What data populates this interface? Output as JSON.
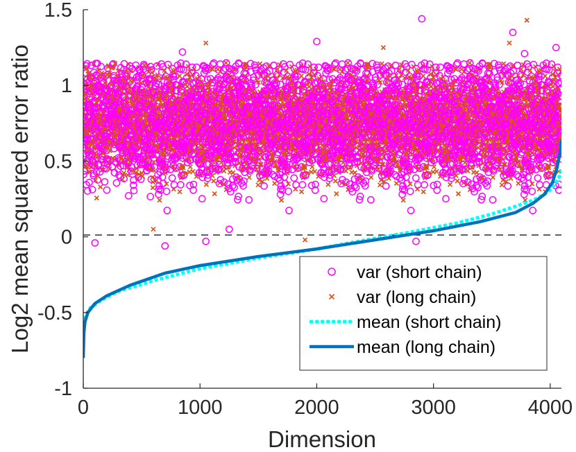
{
  "chart_data": {
    "type": "scatter",
    "title": "",
    "xlabel": "Dimension",
    "ylabel": "Log2 mean squared error ratio",
    "xlim": [
      0,
      4096
    ],
    "ylim": [
      -1,
      1.5
    ],
    "xticks": [
      0,
      1000,
      2000,
      3000,
      4000
    ],
    "xtick_labels": [
      "0",
      "1000",
      "2000",
      "3000",
      "4000"
    ],
    "yticks": [
      -1,
      -0.5,
      0,
      0.5,
      1,
      1.5
    ],
    "ytick_labels": [
      "-1",
      "-0.5",
      "0",
      "0.5",
      "1",
      "1.5"
    ],
    "reference_line": {
      "y": 0,
      "style": "dashed",
      "color": "#000000"
    },
    "legend_position": "bottom-right",
    "series": [
      {
        "name": "var (short chain)",
        "kind": "scatter",
        "marker": "circle",
        "color": "#ff00ff",
        "point_count": 4096,
        "center": 0.75,
        "spread": 0.2,
        "outliers": [
          {
            "x": 2900,
            "y": 1.44
          },
          {
            "x": 2000,
            "y": 1.29
          },
          {
            "x": 3680,
            "y": 1.35
          },
          {
            "x": 4050,
            "y": 1.25
          },
          {
            "x": 850,
            "y": 1.22
          },
          {
            "x": 3780,
            "y": 1.21
          },
          {
            "x": 100,
            "y": -0.04
          },
          {
            "x": 700,
            "y": -0.06
          },
          {
            "x": 1050,
            "y": -0.03
          },
          {
            "x": 2850,
            "y": -0.03
          },
          {
            "x": 1250,
            "y": 0.05
          }
        ]
      },
      {
        "name": "var (long chain)",
        "kind": "scatter",
        "marker": "x",
        "color": "#d95319",
        "point_count": 4096,
        "center": 0.76,
        "spread": 0.17,
        "outliers": [
          {
            "x": 3800,
            "y": 1.43
          },
          {
            "x": 1050,
            "y": 1.28
          },
          {
            "x": 3650,
            "y": 1.28
          },
          {
            "x": 2570,
            "y": 1.25
          },
          {
            "x": 1900,
            "y": -0.02
          },
          {
            "x": 600,
            "y": 0.05
          }
        ]
      },
      {
        "name": "mean (short chain)",
        "kind": "line",
        "style": "dotted",
        "color": "#00ffff",
        "x": [
          0,
          20,
          60,
          150,
          300,
          600,
          1000,
          1500,
          2000,
          2500,
          2800,
          3200,
          3500,
          3700,
          3850,
          3950,
          4000,
          4050,
          4080,
          4096
        ],
        "y": [
          -0.58,
          -0.52,
          -0.47,
          -0.42,
          -0.36,
          -0.29,
          -0.21,
          -0.14,
          -0.08,
          -0.01,
          0.03,
          0.09,
          0.15,
          0.2,
          0.24,
          0.28,
          0.31,
          0.36,
          0.4,
          0.44
        ]
      },
      {
        "name": "mean (long chain)",
        "kind": "line",
        "style": "solid",
        "color": "#0072bd",
        "x": [
          0,
          5,
          15,
          40,
          100,
          200,
          400,
          700,
          1000,
          1500,
          2000,
          2500,
          3000,
          3400,
          3700,
          3850,
          3950,
          4020,
          4060,
          4085,
          4096
        ],
        "y": [
          -0.8,
          -0.64,
          -0.56,
          -0.5,
          -0.44,
          -0.39,
          -0.32,
          -0.24,
          -0.19,
          -0.13,
          -0.08,
          -0.02,
          0.04,
          0.1,
          0.16,
          0.22,
          0.28,
          0.36,
          0.46,
          0.56,
          0.64
        ]
      }
    ]
  }
}
